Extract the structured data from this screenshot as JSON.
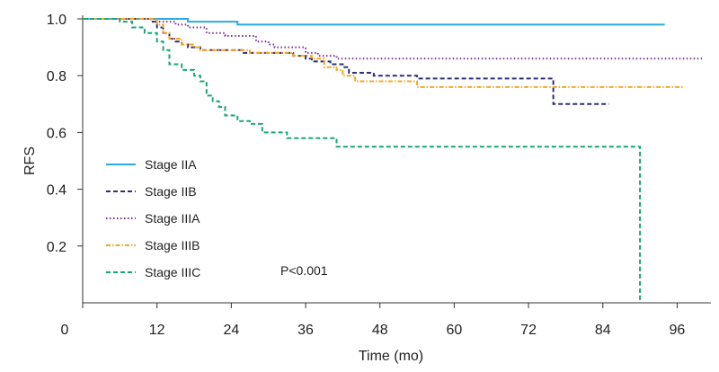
{
  "chart_data": {
    "type": "line",
    "ylabel": "RFS",
    "xlabel": "Time (mo)",
    "xlim": [
      0,
      96
    ],
    "ylim": [
      0,
      1.0
    ],
    "x_ticks": [
      0,
      12,
      24,
      36,
      48,
      60,
      72,
      84,
      96
    ],
    "y_ticks": [
      0.2,
      0.4,
      0.6,
      0.8,
      1.0
    ],
    "grid": false,
    "legend_position": "lower-left",
    "annotation": "P<0.001",
    "series": [
      {
        "name": "Stage IIA",
        "color": "#29abe2",
        "dash": "solid",
        "steps": [
          [
            0,
            1.0
          ],
          [
            17,
            0.99
          ],
          [
            25,
            0.98
          ],
          [
            94,
            0.98
          ]
        ]
      },
      {
        "name": "Stage IIB",
        "color": "#2e2e7a",
        "dash": "dashed",
        "steps": [
          [
            0,
            1.0
          ],
          [
            11,
            0.99
          ],
          [
            12,
            0.97
          ],
          [
            13,
            0.95
          ],
          [
            14,
            0.93
          ],
          [
            15,
            0.92
          ],
          [
            16,
            0.91
          ],
          [
            17,
            0.9
          ],
          [
            19,
            0.89
          ],
          [
            26,
            0.88
          ],
          [
            34,
            0.87
          ],
          [
            36,
            0.86
          ],
          [
            37,
            0.85
          ],
          [
            40,
            0.84
          ],
          [
            42,
            0.83
          ],
          [
            43,
            0.81
          ],
          [
            47,
            0.8
          ],
          [
            54,
            0.79
          ],
          [
            76,
            0.7
          ],
          [
            85,
            0.7
          ]
        ]
      },
      {
        "name": "Stage IIIA",
        "color": "#7b2f8e",
        "dash": "dotted",
        "steps": [
          [
            0,
            1.0
          ],
          [
            12,
            0.99
          ],
          [
            15,
            0.98
          ],
          [
            17,
            0.97
          ],
          [
            20,
            0.95
          ],
          [
            23,
            0.94
          ],
          [
            28,
            0.92
          ],
          [
            30,
            0.91
          ],
          [
            31,
            0.9
          ],
          [
            36,
            0.88
          ],
          [
            38,
            0.87
          ],
          [
            41,
            0.86
          ],
          [
            100,
            0.86
          ]
        ]
      },
      {
        "name": "Stage IIIB",
        "color": "#f5a623",
        "dash": "dashdot",
        "steps": [
          [
            0,
            1.0
          ],
          [
            12,
            0.98
          ],
          [
            13,
            0.95
          ],
          [
            14,
            0.93
          ],
          [
            16,
            0.91
          ],
          [
            18,
            0.9
          ],
          [
            19,
            0.89
          ],
          [
            27,
            0.88
          ],
          [
            34,
            0.87
          ],
          [
            37,
            0.86
          ],
          [
            39,
            0.83
          ],
          [
            41,
            0.82
          ],
          [
            42,
            0.8
          ],
          [
            44,
            0.78
          ],
          [
            54,
            0.76
          ],
          [
            76,
            0.76
          ],
          [
            97,
            0.76
          ]
        ]
      },
      {
        "name": "Stage IIIC",
        "color": "#1aa67a",
        "dash": "dashed",
        "steps": [
          [
            0,
            1.0
          ],
          [
            6,
            0.99
          ],
          [
            8,
            0.97
          ],
          [
            10,
            0.95
          ],
          [
            12,
            0.92
          ],
          [
            13,
            0.89
          ],
          [
            14,
            0.84
          ],
          [
            16,
            0.82
          ],
          [
            18,
            0.8
          ],
          [
            19,
            0.78
          ],
          [
            20,
            0.73
          ],
          [
            21,
            0.71
          ],
          [
            22,
            0.69
          ],
          [
            23,
            0.66
          ],
          [
            25,
            0.64
          ],
          [
            27,
            0.63
          ],
          [
            29,
            0.6
          ],
          [
            33,
            0.58
          ],
          [
            41,
            0.55
          ],
          [
            90,
            0.55
          ],
          [
            90,
            0.0
          ]
        ]
      }
    ]
  }
}
